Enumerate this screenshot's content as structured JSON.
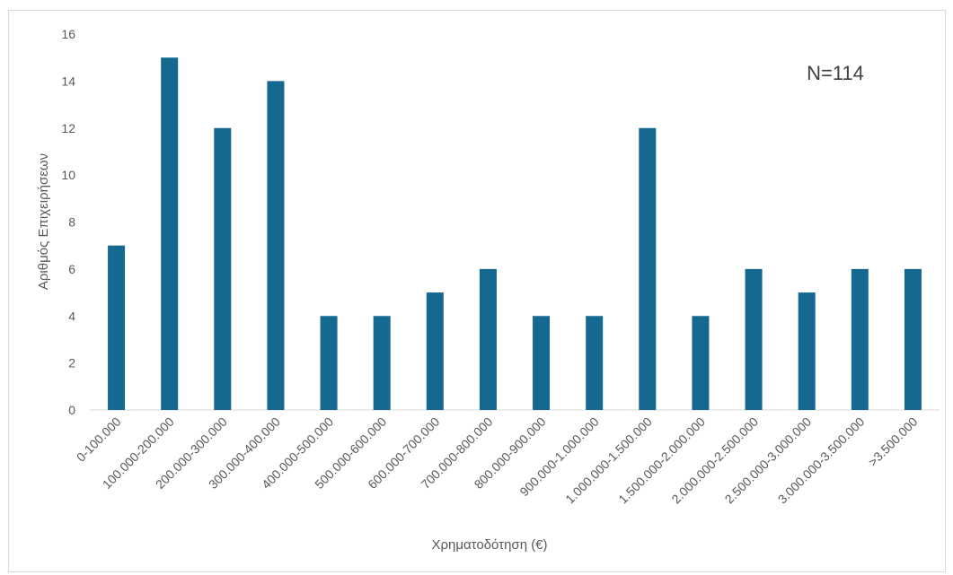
{
  "chart_data": {
    "type": "bar",
    "categories": [
      "0-100.000",
      "100.000-200.000",
      "200.000-300.000",
      "300.000-400.000",
      "400.000-500.000",
      "500.000-600.000",
      "600.000-700.000",
      "700.000-800.000",
      "800.000-900.000",
      "900.000-1.000.000",
      "1.000.000-1.500.000",
      "1.500.000-2.000.000",
      "2.000.000-2.500.000",
      "2.500.000-3.000.000",
      "3.000.000-3.500.000",
      ">3.500.000"
    ],
    "values": [
      7,
      15,
      12,
      14,
      4,
      4,
      5,
      6,
      4,
      4,
      12,
      4,
      6,
      5,
      6,
      6
    ],
    "xlabel": "Χρηματοδότηση (€)",
    "ylabel": "Αριθμός Επιχειρήσεων",
    "ylim": [
      0,
      16
    ],
    "yticks": [
      "0",
      "2",
      "4",
      "6",
      "8",
      "10",
      "12",
      "14",
      "16"
    ],
    "annotation": "N=114",
    "bar_color": "#156890",
    "grid": false,
    "legend": "none"
  }
}
